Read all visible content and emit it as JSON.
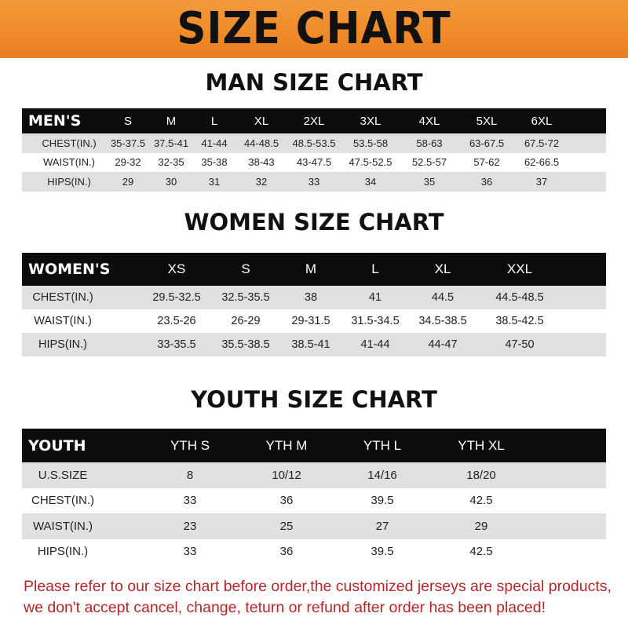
{
  "banner": {
    "title": "SIZE CHART",
    "color": "#ef8a27"
  },
  "men": {
    "title": "MAN SIZE CHART",
    "header_label": "MEN'S",
    "sizes": [
      "S",
      "M",
      "L",
      "XL",
      "2XL",
      "3XL",
      "4XL",
      "5XL",
      "6XL"
    ],
    "rows": [
      {
        "label": "CHEST(IN.)",
        "values": [
          "35-37.5",
          "37.5-41",
          "41-44",
          "44-48.5",
          "48.5-53.5",
          "53.5-58",
          "58-63",
          "63-67.5",
          "67.5-72"
        ]
      },
      {
        "label": "WAIST(IN.)",
        "values": [
          "29-32",
          "32-35",
          "35-38",
          "38-43",
          "43-47.5",
          "47.5-52.5",
          "52.5-57",
          "57-62",
          "62-66.5"
        ]
      },
      {
        "label": "HIPS(IN.)",
        "values": [
          "29",
          "30",
          "31",
          "32",
          "33",
          "34",
          "35",
          "36",
          "37"
        ]
      }
    ]
  },
  "women": {
    "title": "WOMEN SIZE CHART",
    "header_label": "WOMEN'S",
    "sizes": [
      "XS",
      "S",
      "M",
      "L",
      "XL",
      "XXL"
    ],
    "rows": [
      {
        "label": "CHEST(IN.)",
        "values": [
          "29.5-32.5",
          "32.5-35.5",
          "38",
          "41",
          "44.5",
          "44.5-48.5"
        ]
      },
      {
        "label": "WAIST(IN.)",
        "values": [
          "23.5-26",
          "26-29",
          "29-31.5",
          "31.5-34.5",
          "34.5-38.5",
          "38.5-42.5"
        ]
      },
      {
        "label": "HIPS(IN.)",
        "values": [
          "33-35.5",
          "35.5-38.5",
          "38.5-41",
          "41-44",
          "44-47",
          "47-50"
        ]
      }
    ]
  },
  "youth": {
    "title": "YOUTH SIZE CHART",
    "header_label": "YOUTH",
    "sizes": [
      "YTH S",
      "YTH M",
      "YTH L",
      "YTH XL"
    ],
    "rows": [
      {
        "label": "U.S.SIZE",
        "values": [
          "8",
          "10/12",
          "14/16",
          "18/20"
        ]
      },
      {
        "label": "CHEST(IN.)",
        "values": [
          "33",
          "36",
          "39.5",
          "42.5"
        ]
      },
      {
        "label": "WAIST(IN.)",
        "values": [
          "23",
          "25",
          "27",
          "29"
        ]
      },
      {
        "label": "HIPS(IN.)",
        "values": [
          "33",
          "36",
          "39.5",
          "42.5"
        ]
      }
    ]
  },
  "note": {
    "line1": "Please refer to our size chart before order,the customized jerseys are special products,",
    "line2": "we don't accept cancel, change, teturn or refund after order has been placed!",
    "color": "#b3262a"
  }
}
